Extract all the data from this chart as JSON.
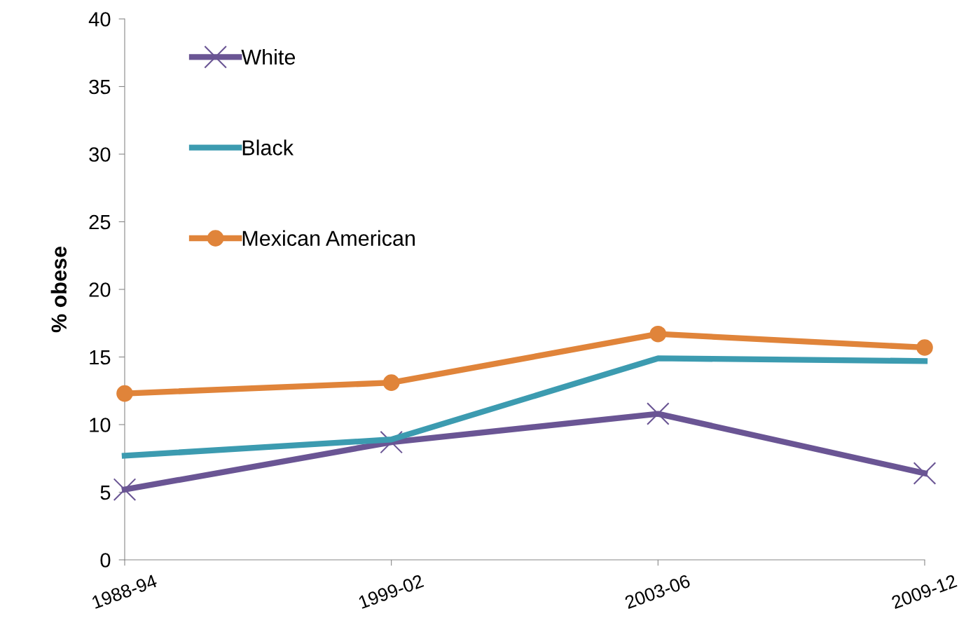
{
  "chart_data": {
    "type": "line",
    "ylabel": "% obese",
    "categories": [
      "1988-94",
      "1999-02",
      "2003-06",
      "2009-12"
    ],
    "series": [
      {
        "name": "White",
        "color": "#6a5594",
        "marker": "cross",
        "values": [
          5.2,
          8.7,
          10.8,
          6.4
        ]
      },
      {
        "name": "Black",
        "color": "#3c9bb0",
        "marker": "none",
        "values": [
          7.7,
          8.9,
          14.9,
          14.7
        ]
      },
      {
        "name": "Mexican American",
        "color": "#e0843a",
        "marker": "circle",
        "values": [
          12.3,
          13.1,
          16.7,
          15.7
        ]
      }
    ],
    "ylim": [
      0,
      40
    ],
    "yticks": [
      0,
      5,
      10,
      15,
      20,
      25,
      30,
      35,
      40
    ],
    "grid": false,
    "legend": "top left"
  }
}
